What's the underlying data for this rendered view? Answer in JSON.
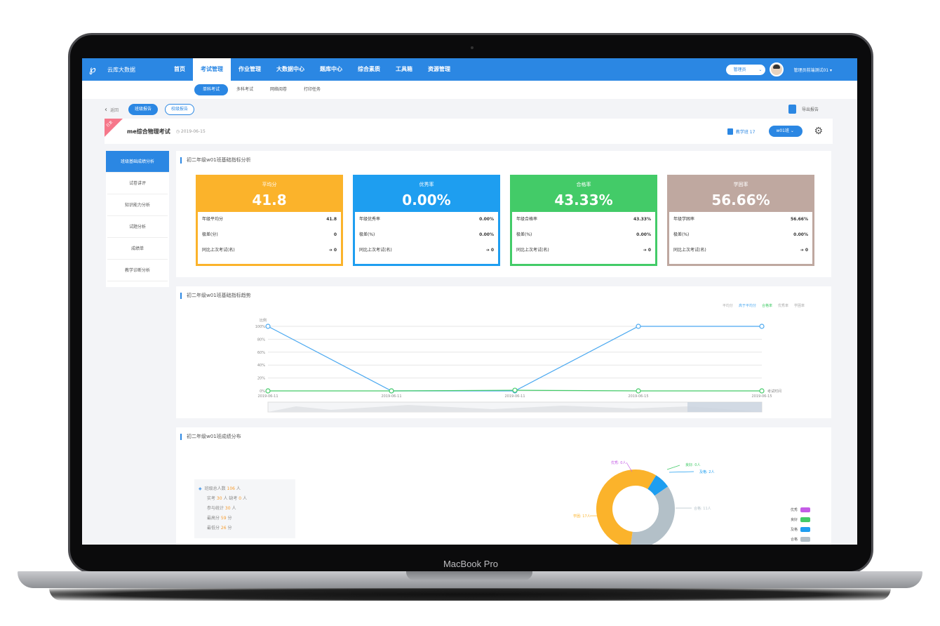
{
  "device": {
    "label": "MacBook Pro"
  },
  "app": {
    "name": "云库大数据"
  },
  "nav": {
    "items": [
      "首页",
      "考试管理",
      "作业管理",
      "大数据中心",
      "题库中心",
      "综合素质",
      "工具箱",
      "资源管理"
    ],
    "active": 1
  },
  "topbar": {
    "term": "管理员",
    "user": "管理员前端测试01 ▾"
  },
  "subnav": {
    "items": [
      "单科考试",
      "多科考试",
      "网络阅卷",
      "打印任务"
    ],
    "active": 0
  },
  "crumb": {
    "back": "返回",
    "report_on": "班级报告",
    "report_off": "校级报告"
  },
  "export": {
    "label": "导出报告"
  },
  "exam": {
    "ribbon": "已发",
    "title": "me综合物理考试",
    "date": "2019-06-15",
    "subject": "教学班 17",
    "class": "w01班"
  },
  "side": {
    "items": [
      "班级基础成绩分析",
      "试卷讲评",
      "知识能力分析",
      "试题分析",
      "成绩单",
      "教学诊断分析"
    ],
    "active": 0
  },
  "panel1": {
    "title": "初二年级w01班基础指标分析"
  },
  "cards": [
    {
      "label": "平均分",
      "value": "41.8",
      "color": "#fbb32b",
      "rows": [
        [
          "年级平均分",
          "41.8"
        ],
        [
          "极差(分)",
          "0"
        ],
        [
          "同比上次考试(名)",
          "➔ 0"
        ]
      ]
    },
    {
      "label": "优秀率",
      "value": "0.00%",
      "color": "#1e9ef0",
      "rows": [
        [
          "年级优秀率",
          "0.00%"
        ],
        [
          "极差(%)",
          "0.00%"
        ],
        [
          "同比上次考试(名)",
          "➔ 0"
        ]
      ]
    },
    {
      "label": "合格率",
      "value": "43.33%",
      "color": "#43cb68",
      "rows": [
        [
          "年级合格率",
          "43.33%"
        ],
        [
          "极差(%)",
          "0.00%"
        ],
        [
          "同比上次考试(名)",
          "➔ 0"
        ]
      ]
    },
    {
      "label": "学困率",
      "value": "56.66%",
      "color": "#bfa8a0",
      "rows": [
        [
          "年级学困率",
          "56.66%"
        ],
        [
          "极差(%)",
          "0.00%"
        ],
        [
          "同比上次考试(名)",
          "➔ 0"
        ]
      ]
    }
  ],
  "panel2": {
    "title": "初二年级w01班基础指标趋势"
  },
  "chart_data": {
    "type": "line",
    "x": [
      "2019-06-11",
      "2019-06-11",
      "2019-06-11",
      "2019-06-15",
      "2019-06-15"
    ],
    "ylabel": "比例",
    "xlabel": "考试时间",
    "yticks": [
      "0%",
      "20%",
      "40%",
      "60%",
      "80%",
      "100%"
    ],
    "ylim": [
      0,
      100
    ],
    "legend": [
      "平均分",
      "高于平均分",
      "合格率",
      "优秀率",
      "学困率"
    ],
    "series": [
      {
        "name": "高于平均分",
        "color": "#4aa8f0",
        "values": [
          100,
          0,
          0,
          100,
          100
        ]
      },
      {
        "name": "合格率",
        "color": "#43cb68",
        "values": [
          0,
          0,
          1,
          0,
          0
        ]
      }
    ]
  },
  "panel3": {
    "title": "初二年级w01班成绩分布"
  },
  "stats": {
    "lines": [
      [
        "班级总人数 ",
        "106",
        " 人"
      ],
      [
        "实考 ",
        "30",
        " 人 缺考 ",
        "0",
        " 人"
      ],
      [
        "参与统计 ",
        "30",
        " 人"
      ],
      [
        "最高分 ",
        "59",
        " 分"
      ],
      [
        "最低分 ",
        "26",
        " 分"
      ]
    ]
  },
  "pie": {
    "slices": [
      {
        "name": "学困",
        "value": 17,
        "label": "学困: 17人",
        "color": "#fbb32b"
      },
      {
        "name": "优秀",
        "value": 0,
        "label": "优秀: 0人",
        "color": "#c45ce6"
      },
      {
        "name": "良好",
        "value": 0,
        "label": "良好: 0人",
        "color": "#43cb68"
      },
      {
        "name": "及格",
        "value": 2,
        "label": "及格: 2人",
        "color": "#1e9ef0"
      },
      {
        "name": "合格",
        "value": 11,
        "label": "合格: 11人",
        "color": "#b3c0c8"
      }
    ],
    "legend": [
      {
        "name": "优秀",
        "color": "#c45ce6"
      },
      {
        "name": "良好",
        "color": "#43cb68"
      },
      {
        "name": "及格",
        "color": "#1e9ef0"
      },
      {
        "name": "合格",
        "color": "#b3c0c8"
      }
    ]
  }
}
